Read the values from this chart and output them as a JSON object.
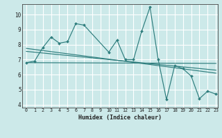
{
  "xlabel": "Humidex (Indice chaleur)",
  "xlim": [
    -0.5,
    23.2
  ],
  "ylim": [
    3.8,
    10.7
  ],
  "yticks": [
    4,
    5,
    6,
    7,
    8,
    9,
    10
  ],
  "xticks": [
    0,
    1,
    2,
    3,
    4,
    5,
    6,
    7,
    8,
    9,
    10,
    11,
    12,
    13,
    14,
    15,
    16,
    17,
    18,
    19,
    20,
    21,
    22,
    23
  ],
  "bg_color": "#cce9e9",
  "line_color": "#2e7d7d",
  "grid_color": "#ffffff",
  "main_line": {
    "x": [
      0,
      1,
      2,
      3,
      4,
      5,
      6,
      7,
      10,
      11,
      12,
      13,
      14,
      15,
      16,
      17,
      18,
      19,
      20,
      21,
      22,
      23
    ],
    "y": [
      6.8,
      6.9,
      7.8,
      8.5,
      8.1,
      8.2,
      9.4,
      9.3,
      7.5,
      8.3,
      7.0,
      7.0,
      8.9,
      10.5,
      7.0,
      4.35,
      6.6,
      6.4,
      5.9,
      4.4,
      4.9,
      4.7
    ]
  },
  "trend_lines": [
    {
      "x": [
        0,
        23
      ],
      "y": [
        7.75,
        6.1
      ]
    },
    {
      "x": [
        0,
        23
      ],
      "y": [
        7.55,
        6.3
      ]
    },
    {
      "x": [
        0,
        23
      ],
      "y": [
        6.8,
        6.75
      ]
    }
  ]
}
